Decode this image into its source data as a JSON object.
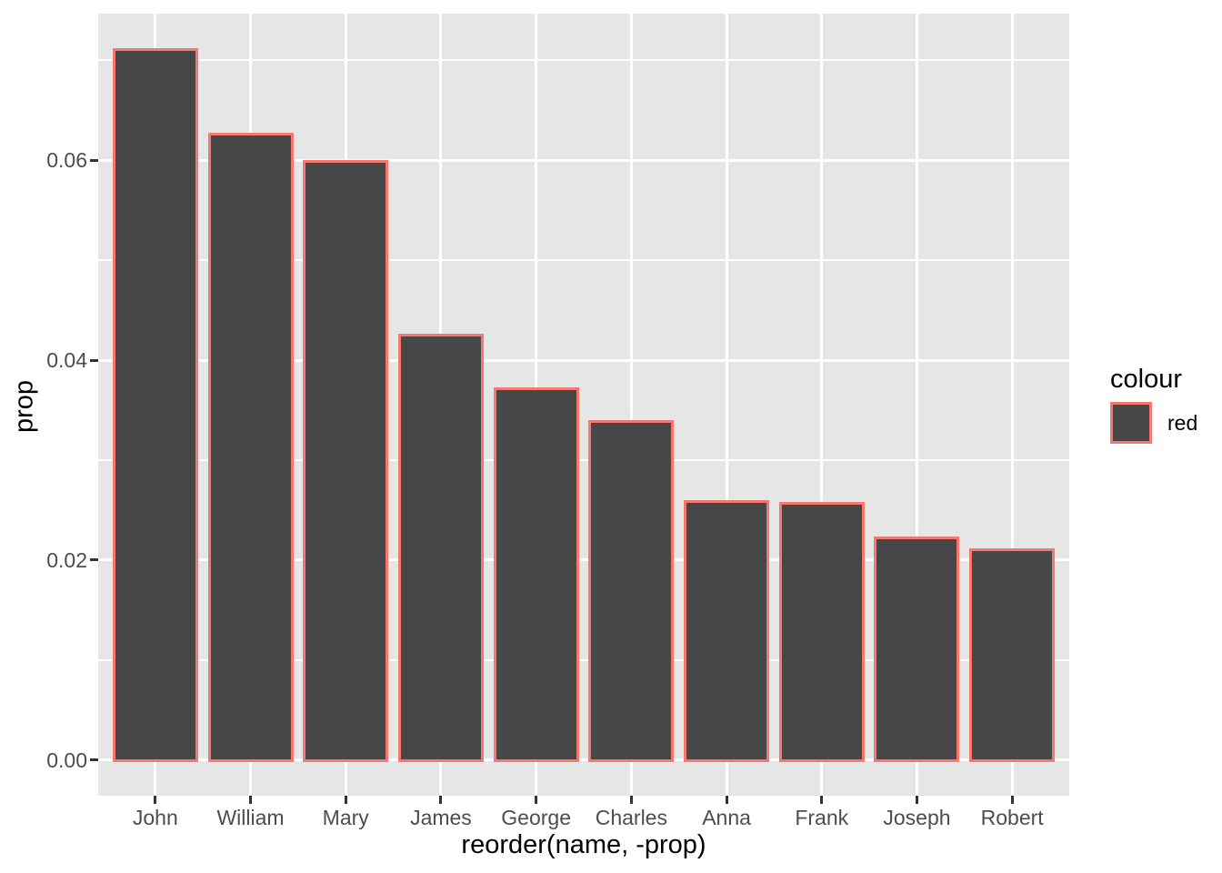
{
  "figure": {
    "colors": {
      "background": "#FFFFFF",
      "panel_bg": "#E6E6E6",
      "grid": "#FFFFFF",
      "bar_fill": "#474747",
      "bar_stroke": "#F8766D",
      "tick": "#333333",
      "axis_text": "#4D4D4D",
      "title_text": "#000000"
    }
  },
  "chart_data": {
    "type": "bar",
    "title": "",
    "xlabel": "reorder(name, -prop)",
    "ylabel": "prop",
    "categories": [
      "John",
      "William",
      "Mary",
      "James",
      "George",
      "Charles",
      "Anna",
      "Frank",
      "Joseph",
      "Robert"
    ],
    "values": [
      0.0712,
      0.0627,
      0.06,
      0.0426,
      0.0373,
      0.034,
      0.026,
      0.0258,
      0.0224,
      0.0212
    ],
    "y_ticks": [
      {
        "label": "0.00",
        "value": 0.0
      },
      {
        "label": "0.02",
        "value": 0.02
      },
      {
        "label": "0.04",
        "value": 0.04
      },
      {
        "label": "0.06",
        "value": 0.06
      }
    ],
    "y_minor": [
      0.01,
      0.03,
      0.05,
      0.07
    ],
    "ylim": [
      -0.00356,
      0.07466
    ],
    "grid": true,
    "legend": {
      "position": "right",
      "title": "colour",
      "entries": [
        {
          "label": "red",
          "fill": "#474747",
          "stroke": "#F8766D"
        }
      ]
    }
  }
}
